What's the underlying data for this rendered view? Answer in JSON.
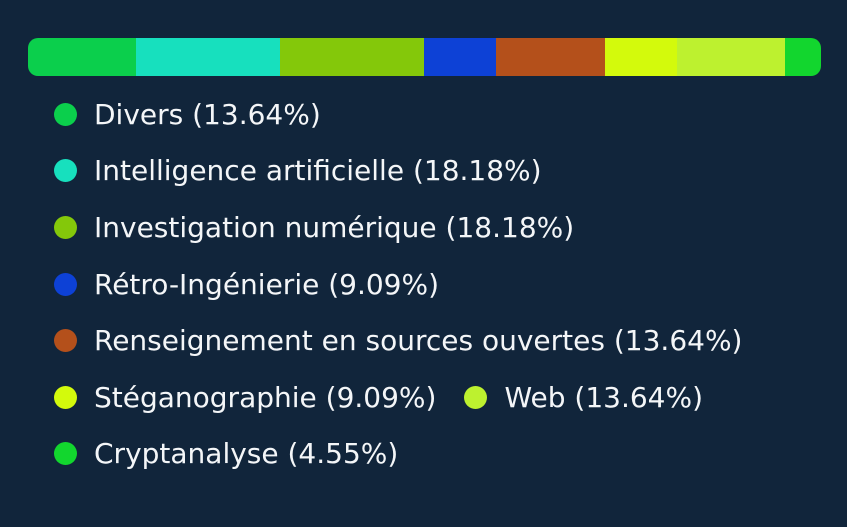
{
  "chart_data": {
    "type": "bar",
    "orientation": "horizontal-stacked",
    "categories": [
      "Divers",
      "Intelligence artificielle",
      "Investigation numérique",
      "Rétro-Ingénierie",
      "Renseignement en sources ouvertes",
      "Stéganographie",
      "Web",
      "Cryptanalyse"
    ],
    "values": [
      13.64,
      18.18,
      18.18,
      9.09,
      13.64,
      9.09,
      13.64,
      4.55
    ],
    "labels": [
      "Divers (13.64%)",
      "Intelligence artificielle (18.18%)",
      "Investigation numérique (18.18%)",
      "Rétro-Ingénierie (9.09%)",
      "Renseignement en sources ouvertes (13.64%)",
      "Stéganographie (9.09%)",
      "Web (13.64%)",
      "Cryptanalyse (4.55%)"
    ],
    "colors": [
      "#0bcf4c",
      "#17e0be",
      "#84c80a",
      "#0d41d6",
      "#b4501b",
      "#d3fa0c",
      "#bdf12f",
      "#12d62e"
    ],
    "legend_position": "below",
    "grid": false
  }
}
